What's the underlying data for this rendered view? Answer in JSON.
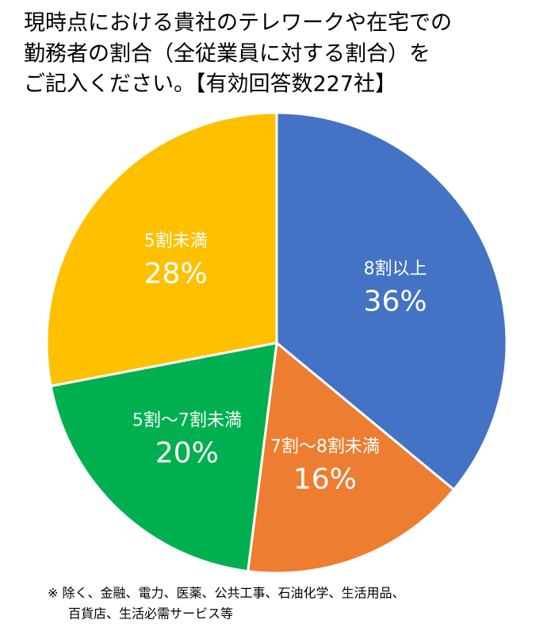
{
  "chart_data": {
    "type": "pie",
    "title": [
      "現時点における貴社のテレワークや在宅での",
      "勤務者の割合（全従業員に対する割合）を",
      "ご記入ください。【有効回答数227社】"
    ],
    "categories": [
      "8割以上",
      "7割～8割未満",
      "5割～7割未満",
      "5割未満"
    ],
    "values": [
      36,
      16,
      20,
      28
    ],
    "value_labels": [
      "36%",
      "16%",
      "20%",
      "28%"
    ],
    "colors": [
      "#4472c4",
      "#ed7d31",
      "#00b050",
      "#ffc000"
    ],
    "note": [
      "※ 除く、金融、電力、医薬、公共工事、石油化学、生活用品、",
      "百貨店、生活必需サービス等"
    ]
  }
}
